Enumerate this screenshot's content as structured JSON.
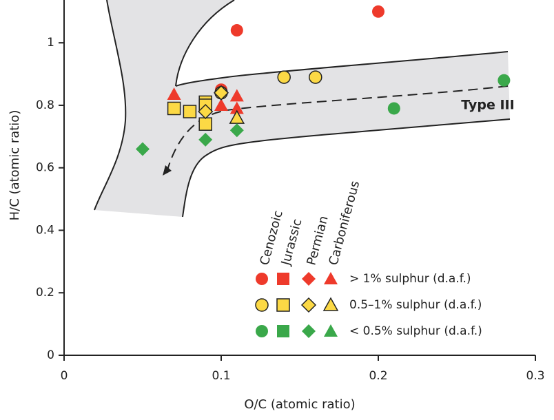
{
  "chart_data": {
    "type": "scatter",
    "x_label": "O/C (atomic ratio)",
    "y_label": "H/C (atomic ratio)",
    "annotation": "Type III",
    "xlim": [
      0,
      0.3
    ],
    "ylim": [
      0,
      1.137
    ],
    "xticks": [
      0,
      0.1,
      0.2,
      0.3
    ],
    "yticks": [
      0,
      0.2,
      0.4,
      0.6,
      0.8,
      1
    ],
    "ages": [
      "Cenozoic",
      "Jurassic",
      "Permian",
      "Carboniferous"
    ],
    "markers": [
      "circle",
      "square",
      "diamond",
      "triangle"
    ],
    "series": [
      {
        "name": "> 1% sulphur (d.a.f.)",
        "color": "#ee3a2b",
        "outline": false,
        "by_age": [
          {
            "x": [
              0.11,
              0.2,
              0.1
            ],
            "y": [
              1.04,
              1.1,
              0.85
            ]
          },
          {
            "x": [],
            "y": []
          },
          {
            "x": [],
            "y": []
          },
          {
            "x": [
              0.07,
              0.07,
              0.1,
              0.11,
              0.11
            ],
            "y": [
              0.835,
              0.79,
              0.8,
              0.83,
              0.79
            ]
          }
        ]
      },
      {
        "name": "0.5–1% sulphur (d.a.f.)",
        "color": "#fcd945",
        "outline": true,
        "by_age": [
          {
            "x": [
              0.14,
              0.16,
              0.1
            ],
            "y": [
              0.89,
              0.89,
              0.84
            ]
          },
          {
            "x": [
              0.07,
              0.08,
              0.09,
              0.09,
              0.09
            ],
            "y": [
              0.79,
              0.78,
              0.81,
              0.8,
              0.74
            ]
          },
          {
            "x": [
              0.1,
              0.09
            ],
            "y": [
              0.84,
              0.78
            ]
          },
          {
            "x": [
              0.11
            ],
            "y": [
              0.76
            ]
          }
        ]
      },
      {
        "name": "< 0.5% sulphur (d.a.f.)",
        "color": "#3aa84a",
        "outline": false,
        "by_age": [
          {
            "x": [
              0.21,
              0.28
            ],
            "y": [
              0.79,
              0.88
            ]
          },
          {
            "x": [],
            "y": []
          },
          {
            "x": [
              0.05,
              0.09,
              0.11
            ],
            "y": [
              0.66,
              0.69,
              0.72
            ]
          },
          {
            "x": [],
            "y": []
          }
        ]
      }
    ]
  }
}
